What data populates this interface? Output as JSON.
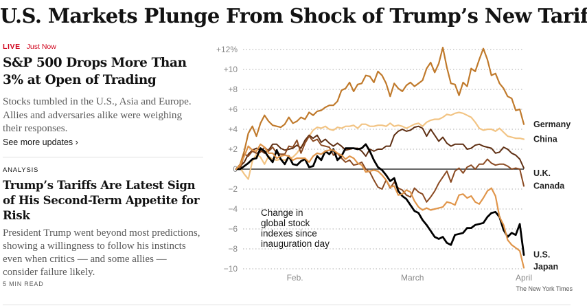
{
  "page": {
    "headline": "U.S. Markets Plunge From Shock of Trump’s New Tariffs"
  },
  "live_story": {
    "live_label": "LIVE",
    "timestamp": "Just Now",
    "title": "S&P 500 Drops More Than 3% at Open of Trading",
    "summary": "Stocks tumbled in the U.S., Asia and Europe. Allies and adversaries alike were weighing their responses.",
    "see_more": "See more updates ›"
  },
  "analysis_story": {
    "kicker": "ANALYSIS",
    "title": "Trump’s Tariffs Are Latest Sign of His Second-Term Appetite for Risk",
    "summary": "President Trump went beyond most predictions, showing a willingness to follow his instincts even when critics — and some allies — consider failure likely.",
    "read_time": "5 MIN READ"
  },
  "chart_data": {
    "type": "line",
    "title": "",
    "annotation": [
      "Change in",
      "global stock",
      "indexes since",
      "inauguration day"
    ],
    "credit": "The New York Times",
    "ylim": [
      -10,
      12
    ],
    "xlim": [
      0,
      71
    ],
    "y_ticks": [
      {
        "value": 12,
        "label": "+12%"
      },
      {
        "value": 10,
        "label": "+10"
      },
      {
        "value": 8,
        "label": "+8"
      },
      {
        "value": 6,
        "label": "+6"
      },
      {
        "value": 4,
        "label": "+4"
      },
      {
        "value": 2,
        "label": "+2"
      },
      {
        "value": 0,
        "label": "0"
      },
      {
        "value": -2,
        "label": "−2"
      },
      {
        "value": -4,
        "label": "−4"
      },
      {
        "value": -6,
        "label": "−6"
      },
      {
        "value": -8,
        "label": "−8"
      },
      {
        "value": -10,
        "label": "−10"
      }
    ],
    "x_ticks": [
      {
        "value": 14.5,
        "label": "Feb."
      },
      {
        "value": 43.5,
        "label": "March"
      },
      {
        "value": 71,
        "label": "April"
      }
    ],
    "series": [
      {
        "name": "Germany",
        "color": "#c07a2c",
        "width": 2.2,
        "values": [
          0,
          0.5,
          1.8,
          3.6,
          4.3,
          3.3,
          4.6,
          5.4,
          4.8,
          4.4,
          4.3,
          4.2,
          4.5,
          5.2,
          4.6,
          4.8,
          5.2,
          5.0,
          5.7,
          5.4,
          5.8,
          5.9,
          6.2,
          6.4,
          6.4,
          6.8,
          7.9,
          8.1,
          8.7,
          7.8,
          8.5,
          8.6,
          9.4,
          9.3,
          8.7,
          9.8,
          9.4,
          8.6,
          7.3,
          8.6,
          8.1,
          7.8,
          8.4,
          8.7,
          8.3,
          8.6,
          8.9,
          10.1,
          10.7,
          9.7,
          10.6,
          12.2,
          10.2,
          8.6,
          8.5,
          7.4,
          8.7,
          8.3,
          10.1,
          9.8,
          11.0,
          12.1,
          11.0,
          9.4,
          9.6,
          8.6,
          8.1,
          7.3,
          7.1,
          5.9,
          6.0,
          4.5
        ]
      },
      {
        "name": "China",
        "color": "#f2c484",
        "width": 2.2,
        "values": [
          0,
          0.1,
          -0.5,
          -1.0,
          0.8,
          1.5,
          1.2,
          0.5,
          1.3,
          1.0,
          0.9,
          1.0,
          0.9,
          1.1,
          1.2,
          1.6,
          2.2,
          2.8,
          3.3,
          3.9,
          4.2,
          4.1,
          4.3,
          4.0,
          3.9,
          4.2,
          4.1,
          4.3,
          4.3,
          4.4,
          4.1,
          4.5,
          4.5,
          4.3,
          4.3,
          4.4,
          4.4,
          4.3,
          4.6,
          4.3,
          4.4,
          4.3,
          4.1,
          4.3,
          4.5,
          4.6,
          4.3,
          4.7,
          4.9,
          5.0,
          5.0,
          5.2,
          5.5,
          5.4,
          5.6,
          5.7,
          5.6,
          5.4,
          5.2,
          4.7,
          4.1,
          3.9,
          4.0,
          4.0,
          3.8,
          4.1,
          3.7,
          3.3,
          3.2,
          3.1,
          3.1,
          3.0
        ]
      },
      {
        "name": "U.K.",
        "color": "#5e2e12",
        "width": 2.0,
        "values": [
          0,
          0.3,
          0.7,
          1.5,
          1.9,
          2.1,
          1.9,
          1.6,
          1.9,
          2.5,
          2.5,
          2.1,
          1.9,
          2.0,
          2.1,
          2.4,
          2.1,
          2.9,
          3.4,
          3.1,
          3.4,
          2.7,
          3.0,
          2.6,
          2.3,
          2.6,
          2.3,
          1.9,
          2.0,
          2.1,
          2.1,
          1.8,
          1.3,
          2.0,
          1.8,
          2.0,
          2.0,
          2.3,
          2.3,
          3.4,
          3.8,
          4.0,
          3.8,
          3.9,
          4.2,
          4.3,
          4.1,
          3.3,
          4.0,
          3.4,
          2.8,
          3.2,
          2.6,
          2.3,
          2.5,
          2.5,
          2.5,
          2.0,
          2.1,
          2.4,
          2.5,
          2.3,
          2.2,
          2.1,
          1.6,
          1.7,
          2.2,
          2.0,
          1.6,
          1.4,
          1.0,
          0.1
        ]
      },
      {
        "name": "Canada",
        "color": "#8a4a22",
        "width": 2.0,
        "values": [
          0,
          0.0,
          1.5,
          1.3,
          1.8,
          1.6,
          1.7,
          2.2,
          1.8,
          2.2,
          1.6,
          1.5,
          1.5,
          2.3,
          2.2,
          2.9,
          1.6,
          2.6,
          3.3,
          2.8,
          3.0,
          2.4,
          2.3,
          2.2,
          1.4,
          1.6,
          1.1,
          0.7,
          0.9,
          0.4,
          0.5,
          0.7,
          0.0,
          -0.3,
          -1.1,
          -1.8,
          -2.0,
          -1.1,
          -1.9,
          -1.3,
          -1.9,
          -2.1,
          -2.6,
          -2.8,
          -1.9,
          -2.3,
          -2.5,
          -3.3,
          -2.8,
          -2.2,
          -1.4,
          -0.8,
          -0.2,
          -1.3,
          -0.2,
          0.1,
          -0.4,
          0.2,
          0.4,
          0.0,
          0.5,
          0.5,
          1.0,
          0.6,
          0.4,
          0.5,
          0.5,
          0.3,
          0.0,
          0.1,
          0.0,
          -1.7
        ]
      },
      {
        "name": "U.S.",
        "color": "#000000",
        "width": 2.8,
        "values": [
          0,
          0.0,
          0.3,
          0.6,
          1.0,
          1.1,
          2.1,
          1.8,
          1.2,
          0.7,
          1.9,
          1.0,
          0.5,
          1.3,
          0.5,
          0.4,
          0.8,
          1.0,
          0.2,
          0.3,
          1.3,
          0.9,
          1.8,
          1.5,
          2.0,
          0.9,
          1.3,
          2.1,
          2.1,
          2.1,
          2.0,
          2.1,
          2.5,
          1.8,
          0.9,
          0.2,
          -0.1,
          -0.6,
          -1.2,
          -0.9,
          -2.2,
          -2.7,
          -3.0,
          -3.6,
          -4.2,
          -4.4,
          -5.1,
          -5.6,
          -6.2,
          -6.8,
          -7.0,
          -6.8,
          -7.4,
          -7.6,
          -6.6,
          -6.5,
          -6.4,
          -5.9,
          -5.9,
          -5.6,
          -5.5,
          -5.4,
          -4.8,
          -4.4,
          -4.3,
          -4.8,
          -6.1,
          -6.8,
          -6.4,
          -6.6,
          -5.5,
          -8.6
        ]
      },
      {
        "name": "Japan",
        "color": "#e0954a",
        "width": 2.2,
        "values": [
          0,
          0.4,
          1.3,
          2.3,
          1.9,
          1.8,
          2.5,
          2.2,
          1.6,
          1.6,
          1.1,
          1.3,
          1.4,
          1.3,
          0.9,
          1.1,
          1.1,
          1.1,
          0.7,
          1.3,
          1.6,
          1.5,
          1.8,
          1.9,
          1.9,
          1.6,
          1.4,
          1.0,
          1.3,
          1.1,
          0.6,
          0.4,
          -0.3,
          -0.2,
          -0.1,
          -0.2,
          -0.6,
          -1.1,
          -1.8,
          -1.7,
          -2.6,
          -2.5,
          -2.1,
          -2.3,
          -3.2,
          -3.8,
          -4.1,
          -3.9,
          -4.1,
          -4.0,
          -3.9,
          -3.8,
          -3.3,
          -3.4,
          -3.6,
          -2.6,
          -2.5,
          -2.9,
          -2.7,
          -3.3,
          -3.5,
          -2.9,
          -2.2,
          -1.9,
          -2.7,
          -4.8,
          -5.6,
          -7.1,
          -7.6,
          -7.9,
          -8.2,
          -9.9
        ]
      }
    ],
    "line_labels": [
      {
        "text": "Germany",
        "y": 4.5
      },
      {
        "text": "China",
        "y": 3.0
      },
      {
        "text": "U.K.",
        "y": -0.4
      },
      {
        "text": "Canada",
        "y": -1.7
      },
      {
        "text": "U.S.",
        "y": -8.6
      },
      {
        "text": "Japan",
        "y": -9.8
      }
    ]
  }
}
